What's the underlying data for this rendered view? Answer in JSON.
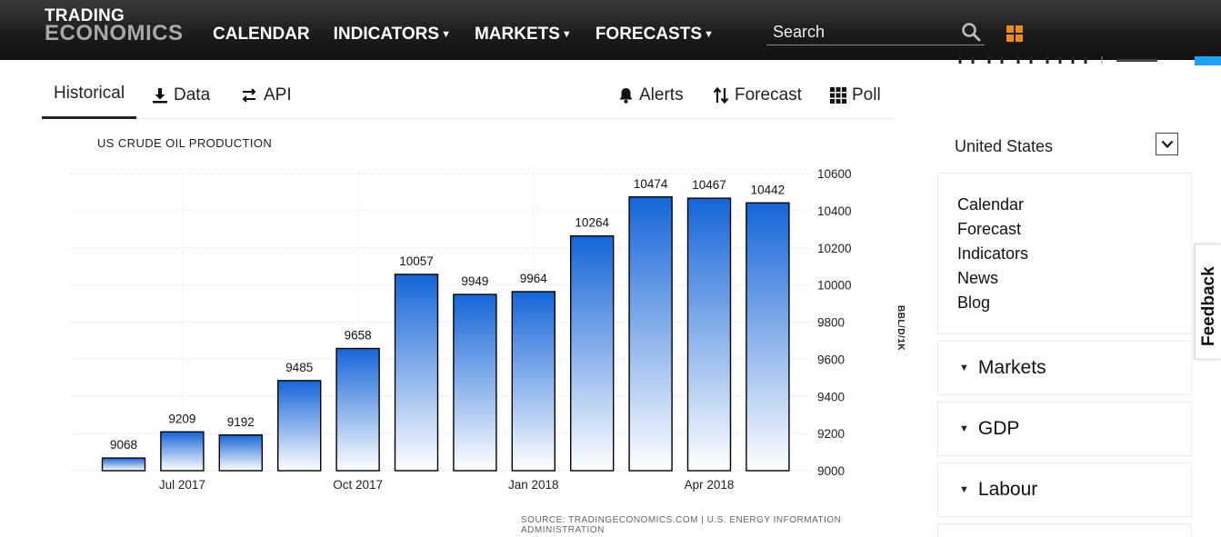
{
  "header": {
    "logo_line1": "TRADING",
    "logo_line2": "ECONOMICS",
    "nav": [
      {
        "label": "CALENDAR",
        "has_caret": false
      },
      {
        "label": "INDICATORS",
        "has_caret": true
      },
      {
        "label": "MARKETS",
        "has_caret": true
      },
      {
        "label": "FORECASTS",
        "has_caret": true
      }
    ],
    "search_placeholder": "Search",
    "search_icon": "search-icon",
    "apps_icon": "grid-icon",
    "accent_color": "#f08a16"
  },
  "tabs": {
    "left": [
      {
        "label": "Historical",
        "icon": "",
        "active": true
      },
      {
        "label": "Data",
        "icon": "download-icon",
        "active": false
      },
      {
        "label": "API",
        "icon": "swap-arrows-icon",
        "active": false
      }
    ],
    "right": [
      {
        "label": "Alerts",
        "icon": "bell-icon"
      },
      {
        "label": "Forecast",
        "icon": "sort-arrows-icon"
      },
      {
        "label": "Poll",
        "icon": "grid-dots-icon"
      }
    ]
  },
  "chart_data": {
    "type": "bar",
    "title": "US CRUDE OIL PRODUCTION",
    "unit": "BBL/D/1K",
    "source": "SOURCE: TRADINGECONOMICS.COM | U.S. ENERGY INFORMATION ADMINISTRATION",
    "values": [
      9068,
      9209,
      9192,
      9485,
      9658,
      10057,
      9949,
      9964,
      10264,
      10474,
      10467,
      10442
    ],
    "x_tick_labels": [
      {
        "index": 1,
        "label": "Jul 2017"
      },
      {
        "index": 4,
        "label": "Oct 2017"
      },
      {
        "index": 7,
        "label": "Jan 2018"
      },
      {
        "index": 10,
        "label": "Apr 2018"
      }
    ],
    "y_ticks": [
      9000,
      9200,
      9400,
      9600,
      9800,
      10000,
      10200,
      10400,
      10600
    ],
    "ylim": [
      9000,
      10600
    ],
    "y_axis_position": "right",
    "grid": true,
    "bar_color_top": "#1565d8",
    "bar_color_bottom": "#ffffff",
    "bar_border": "#000000"
  },
  "sidebar": {
    "country": "United States",
    "links": [
      "Calendar",
      "Forecast",
      "Indicators",
      "News",
      "Blog"
    ],
    "sections": [
      "Markets",
      "GDP",
      "Labour"
    ],
    "feedback": "Feedback"
  }
}
